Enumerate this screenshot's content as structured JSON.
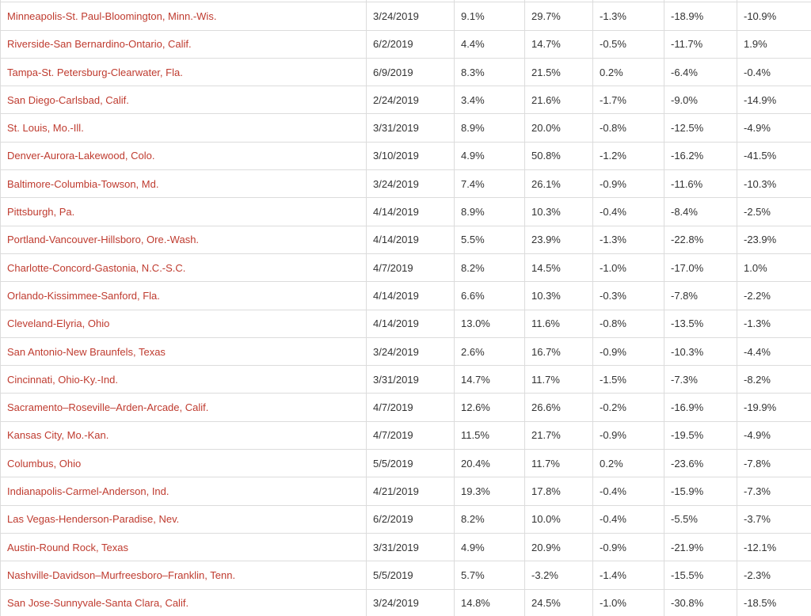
{
  "colors": {
    "link_text": "#bf3b2f",
    "body_text": "#333333",
    "grid_border": "#dcdcdc",
    "row_background": "#ffffff"
  },
  "table": {
    "rows": [
      {
        "metro": "Minneapolis-St. Paul-Bloomington, Minn.-Wis.",
        "date": "3/24/2019",
        "values": [
          "9.1%",
          "29.7%",
          "-1.3%",
          "-18.9%",
          "-10.9%"
        ]
      },
      {
        "metro": "Riverside-San Bernardino-Ontario, Calif.",
        "date": "6/2/2019",
        "values": [
          "4.4%",
          "14.7%",
          "-0.5%",
          "-11.7%",
          "1.9%"
        ]
      },
      {
        "metro": "Tampa-St. Petersburg-Clearwater, Fla.",
        "date": "6/9/2019",
        "values": [
          "8.3%",
          "21.5%",
          "0.2%",
          "-6.4%",
          "-0.4%"
        ]
      },
      {
        "metro": "San Diego-Carlsbad, Calif.",
        "date": "2/24/2019",
        "values": [
          "3.4%",
          "21.6%",
          "-1.7%",
          "-9.0%",
          "-14.9%"
        ]
      },
      {
        "metro": "St. Louis, Mo.-Ill.",
        "date": "3/31/2019",
        "values": [
          "8.9%",
          "20.0%",
          "-0.8%",
          "-12.5%",
          "-4.9%"
        ]
      },
      {
        "metro": "Denver-Aurora-Lakewood, Colo.",
        "date": "3/10/2019",
        "values": [
          "4.9%",
          "50.8%",
          "-1.2%",
          "-16.2%",
          "-41.5%"
        ]
      },
      {
        "metro": "Baltimore-Columbia-Towson, Md.",
        "date": "3/24/2019",
        "values": [
          "7.4%",
          "26.1%",
          "-0.9%",
          "-11.6%",
          "-10.3%"
        ]
      },
      {
        "metro": "Pittsburgh, Pa.",
        "date": "4/14/2019",
        "values": [
          "8.9%",
          "10.3%",
          "-0.4%",
          "-8.4%",
          "-2.5%"
        ]
      },
      {
        "metro": "Portland-Vancouver-Hillsboro, Ore.-Wash.",
        "date": "4/14/2019",
        "values": [
          "5.5%",
          "23.9%",
          "-1.3%",
          "-22.8%",
          "-23.9%"
        ]
      },
      {
        "metro": "Charlotte-Concord-Gastonia, N.C.-S.C.",
        "date": "4/7/2019",
        "values": [
          "8.2%",
          "14.5%",
          "-1.0%",
          "-17.0%",
          "1.0%"
        ]
      },
      {
        "metro": "Orlando-Kissimmee-Sanford, Fla.",
        "date": "4/14/2019",
        "values": [
          "6.6%",
          "10.3%",
          "-0.3%",
          "-7.8%",
          "-2.2%"
        ]
      },
      {
        "metro": "Cleveland-Elyria, Ohio",
        "date": "4/14/2019",
        "values": [
          "13.0%",
          "11.6%",
          "-0.8%",
          "-13.5%",
          "-1.3%"
        ]
      },
      {
        "metro": "San Antonio-New Braunfels, Texas",
        "date": "3/24/2019",
        "values": [
          "2.6%",
          "16.7%",
          "-0.9%",
          "-10.3%",
          "-4.4%"
        ]
      },
      {
        "metro": "Cincinnati, Ohio-Ky.-Ind.",
        "date": "3/31/2019",
        "values": [
          "14.7%",
          "11.7%",
          "-1.5%",
          "-7.3%",
          "-8.2%"
        ]
      },
      {
        "metro": "Sacramento–Roseville–Arden-Arcade, Calif.",
        "date": "4/7/2019",
        "values": [
          "12.6%",
          "26.6%",
          "-0.2%",
          "-16.9%",
          "-19.9%"
        ]
      },
      {
        "metro": "Kansas City, Mo.-Kan.",
        "date": "4/7/2019",
        "values": [
          "11.5%",
          "21.7%",
          "-0.9%",
          "-19.5%",
          "-4.9%"
        ]
      },
      {
        "metro": "Columbus, Ohio",
        "date": "5/5/2019",
        "values": [
          "20.4%",
          "11.7%",
          "0.2%",
          "-23.6%",
          "-7.8%"
        ]
      },
      {
        "metro": "Indianapolis-Carmel-Anderson, Ind.",
        "date": "4/21/2019",
        "values": [
          "19.3%",
          "17.8%",
          "-0.4%",
          "-15.9%",
          "-7.3%"
        ]
      },
      {
        "metro": "Las Vegas-Henderson-Paradise, Nev.",
        "date": "6/2/2019",
        "values": [
          "8.2%",
          "10.0%",
          "-0.4%",
          "-5.5%",
          "-3.7%"
        ]
      },
      {
        "metro": "Austin-Round Rock, Texas",
        "date": "3/31/2019",
        "values": [
          "4.9%",
          "20.9%",
          "-0.9%",
          "-21.9%",
          "-12.1%"
        ]
      },
      {
        "metro": "Nashville-Davidson–Murfreesboro–Franklin, Tenn.",
        "date": "5/5/2019",
        "values": [
          "5.7%",
          "-3.2%",
          "-1.4%",
          "-15.5%",
          "-2.3%"
        ]
      },
      {
        "metro": "San Jose-Sunnyvale-Santa Clara, Calif.",
        "date": "3/24/2019",
        "values": [
          "14.8%",
          "24.5%",
          "-1.0%",
          "-30.8%",
          "-18.5%"
        ]
      }
    ]
  }
}
